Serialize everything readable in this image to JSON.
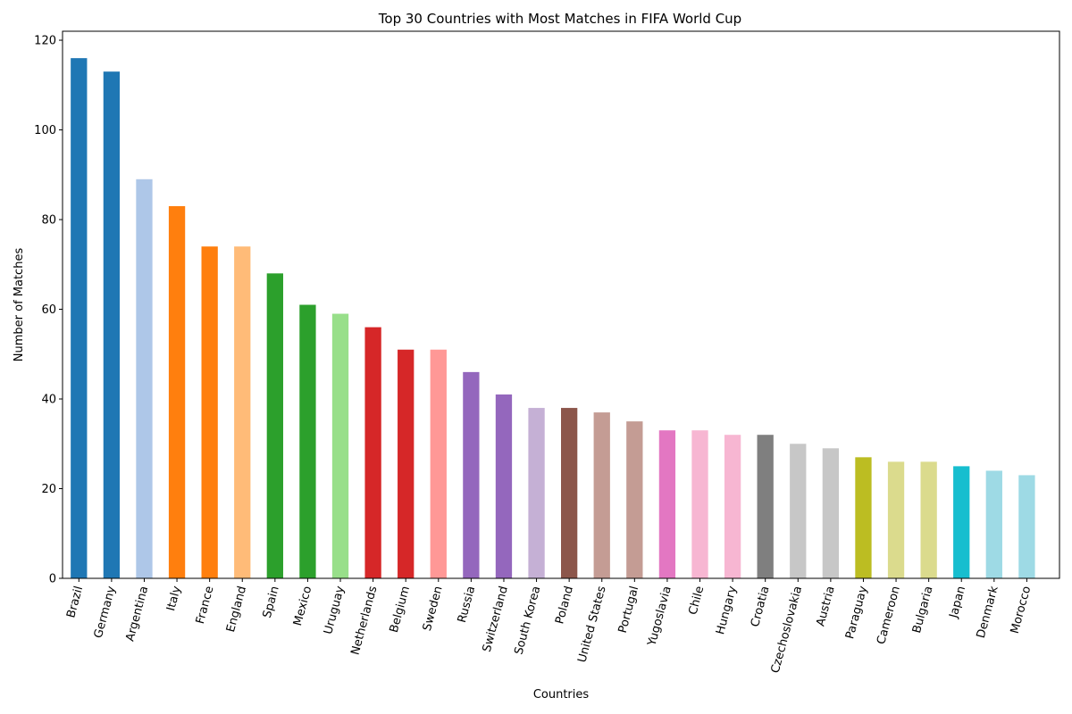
{
  "chart_data": {
    "type": "bar",
    "title": "Top 30 Countries with Most Matches in FIFA World Cup",
    "xlabel": "Countries",
    "ylabel": "Number of Matches",
    "ylim": [
      0,
      122
    ],
    "yticks": [
      0,
      20,
      40,
      60,
      80,
      100,
      120
    ],
    "grid": false,
    "categories": [
      "Brazil",
      "Germany",
      "Argentina",
      "Italy",
      "France",
      "England",
      "Spain",
      "Mexico",
      "Uruguay",
      "Netherlands",
      "Belgium",
      "Sweden",
      "Russia",
      "Switzerland",
      "South Korea",
      "Poland",
      "United States",
      "Portugal",
      "Yugoslavia",
      "Chile",
      "Hungary",
      "Croatia",
      "Czechoslovakia",
      "Austria",
      "Paraguay",
      "Cameroon",
      "Bulgaria",
      "Japan",
      "Denmark",
      "Morocco"
    ],
    "values": [
      116,
      113,
      89,
      83,
      74,
      74,
      68,
      61,
      59,
      56,
      51,
      51,
      46,
      41,
      38,
      38,
      37,
      35,
      33,
      33,
      32,
      32,
      30,
      29,
      27,
      26,
      26,
      25,
      24,
      23
    ],
    "colors": [
      "#1f77b4",
      "#1f77b4",
      "#aec7e8",
      "#ff7f0e",
      "#ff7f0e",
      "#ffbb78",
      "#2ca02c",
      "#2ca02c",
      "#98df8a",
      "#d62728",
      "#d62728",
      "#ff9896",
      "#9467bd",
      "#9467bd",
      "#c5b0d5",
      "#8c564b",
      "#c49c94",
      "#c49c94",
      "#e377c2",
      "#f7b6d2",
      "#f7b6d2",
      "#7f7f7f",
      "#c7c7c7",
      "#c7c7c7",
      "#bcbd22",
      "#dbdb8d",
      "#dbdb8d",
      "#17becf",
      "#9edae5",
      "#9edae5"
    ]
  }
}
